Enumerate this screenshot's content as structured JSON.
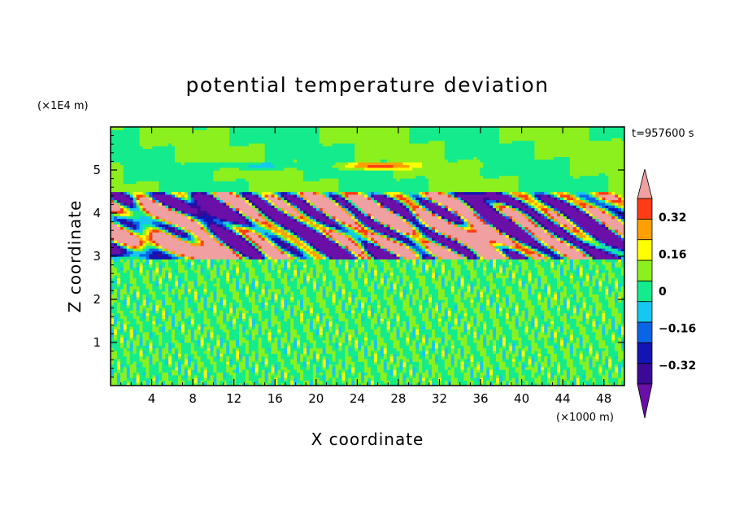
{
  "chart_data": {
    "type": "heatmap",
    "title": "potential temperature deviation",
    "xlabel": "X coordinate",
    "ylabel": "Z coordinate",
    "x_units": "(×1000 m)",
    "y_units": "(×1E4 m)",
    "time_label": "t=957600 s",
    "xlim": [
      0,
      50
    ],
    "ylim": [
      0,
      6
    ],
    "x_ticks": [
      4,
      8,
      12,
      16,
      20,
      24,
      28,
      32,
      36,
      40,
      44,
      48
    ],
    "x_tick_labels": [
      "4",
      "8",
      "12",
      "16",
      "20",
      "24",
      "28",
      "32",
      "36",
      "40",
      "44",
      "48"
    ],
    "y_ticks": [
      1,
      2,
      3,
      4,
      5
    ],
    "y_tick_labels": [
      "1",
      "2",
      "3",
      "4",
      "5"
    ],
    "colorbar": {
      "levels": [
        -0.4,
        -0.32,
        -0.24,
        -0.16,
        -0.08,
        0,
        0.08,
        0.16,
        0.24,
        0.32,
        0.4
      ],
      "colors": [
        "#6a0fa8",
        "#3a0a96",
        "#1414b4",
        "#0a64e6",
        "#14c8f0",
        "#14eb8c",
        "#8cf01e",
        "#ffff00",
        "#ffa000",
        "#ff3c14",
        "#f0a0a0"
      ],
      "tick_values": [
        -0.32,
        -0.16,
        0,
        0.16,
        0.32
      ],
      "tick_labels": [
        "−0.32",
        "−0.16",
        "0",
        "0.16",
        "0.32"
      ],
      "extend": "both"
    },
    "regions": [
      {
        "z_range": [
          0,
          2.95
        ],
        "description": "small-scale noise between -0.08 and 0.08"
      },
      {
        "z_range": [
          2.95,
          4.5
        ],
        "description": "strong layered perturbations from below -0.4 to above 0.4"
      },
      {
        "z_range": [
          4.5,
          6
        ],
        "description": "weak perturbations, mostly between -0.08 and 0.08"
      }
    ]
  }
}
